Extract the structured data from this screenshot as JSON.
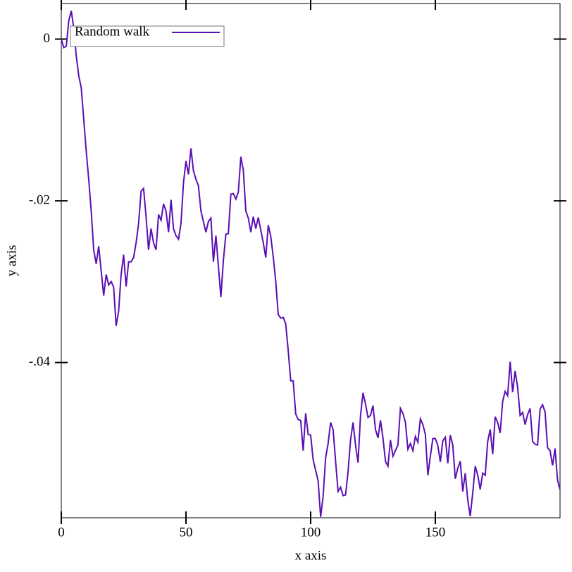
{
  "chart_data": {
    "type": "line",
    "x_label": "x axis",
    "y_label": "y axis",
    "x": [
      0,
      1,
      2,
      3,
      4,
      5,
      6,
      7,
      8,
      9,
      10,
      11,
      12,
      13,
      14,
      15,
      16,
      17,
      18,
      19,
      20,
      21,
      22,
      23,
      24,
      25,
      26,
      27,
      28,
      29,
      30,
      31,
      32,
      33,
      34,
      35,
      36,
      37,
      38,
      39,
      40,
      41,
      42,
      43,
      44,
      45,
      46,
      47,
      48,
      49,
      50,
      51,
      52,
      53,
      54,
      55,
      56,
      57,
      58,
      59,
      60,
      61,
      62,
      63,
      64,
      65,
      66,
      67,
      68,
      69,
      70,
      71,
      72,
      73,
      74,
      75,
      76,
      77,
      78,
      79,
      80,
      81,
      82,
      83,
      84,
      85,
      86,
      87,
      88,
      89,
      90,
      91,
      92,
      93,
      94,
      95,
      96,
      97,
      98,
      99,
      100,
      101,
      102,
      103,
      104,
      105,
      106,
      107,
      108,
      109,
      110,
      111,
      112,
      113,
      114,
      115,
      116,
      117,
      118,
      119,
      120,
      121,
      122,
      123,
      124,
      125,
      126,
      127,
      128,
      129,
      130,
      131,
      132,
      133,
      134,
      135,
      136,
      137,
      138,
      139,
      140,
      141,
      142,
      143,
      144,
      145,
      146,
      147,
      148,
      149,
      150,
      151,
      152,
      153,
      154,
      155,
      156,
      157,
      158,
      159,
      160,
      161,
      162,
      163,
      164,
      165,
      166,
      167,
      168,
      169,
      170,
      171,
      172,
      173,
      174,
      175,
      176,
      177,
      178,
      179,
      180,
      181,
      182,
      183,
      184,
      185,
      186,
      187,
      188,
      189,
      190,
      191,
      192,
      193,
      194,
      195,
      196,
      197,
      198,
      199,
      200
    ],
    "series": [
      {
        "name": "Random walk",
        "color": "#5b0fb5",
        "values": [
          0,
          -0.00105,
          -0.00087,
          0.00227,
          0.00349,
          0.00139,
          -0.00209,
          -0.00453,
          -0.00601,
          -0.00993,
          -0.01386,
          -0.01734,
          -0.02126,
          -0.02606,
          -0.0278,
          -0.02562,
          -0.02867,
          -0.03172,
          -0.02911,
          -0.03041,
          -0.02998,
          -0.03068,
          -0.03547,
          -0.03364,
          -0.02911,
          -0.02667,
          -0.03059,
          -0.02754,
          -0.02754,
          -0.02702,
          -0.02519,
          -0.02283,
          -0.01882,
          -0.01847,
          -0.02196,
          -0.02606,
          -0.02344,
          -0.02519,
          -0.02606,
          -0.0217,
          -0.0224,
          -0.02039,
          -0.02126,
          -0.02388,
          -0.01987,
          -0.02344,
          -0.02431,
          -0.02475,
          -0.02283,
          -0.01778,
          -0.01508,
          -0.01673,
          -0.01351,
          -0.0163,
          -0.01734,
          -0.01813,
          -0.02126,
          -0.02257,
          -0.02388,
          -0.02257,
          -0.02213,
          -0.02754,
          -0.02431,
          -0.02806,
          -0.0319,
          -0.02736,
          -0.02414,
          -0.02405,
          -0.01917,
          -0.01909,
          -0.01978,
          -0.01891,
          -0.01455,
          -0.01621,
          -0.02126,
          -0.02213,
          -0.02388,
          -0.02196,
          -0.02344,
          -0.02205,
          -0.02362,
          -0.02519,
          -0.02702,
          -0.02301,
          -0.0244,
          -0.02693,
          -0.02998,
          -0.03407,
          -0.03451,
          -0.03442,
          -0.03521,
          -0.03852,
          -0.04227,
          -0.04227,
          -0.04636,
          -0.04706,
          -0.04715,
          -0.0509,
          -0.04628,
          -0.04889,
          -0.04898,
          -0.05203,
          -0.05333,
          -0.05464,
          -0.05909,
          -0.05656,
          -0.05177,
          -0.05002,
          -0.04741,
          -0.04828,
          -0.0522,
          -0.05595,
          -0.05543,
          -0.05647,
          -0.05638,
          -0.05351,
          -0.04959,
          -0.04741,
          -0.0502,
          -0.05238,
          -0.04654,
          -0.04375,
          -0.04514,
          -0.0468,
          -0.04654,
          -0.04532,
          -0.04828,
          -0.04933,
          -0.04715,
          -0.04933,
          -0.0522,
          -0.05281,
          -0.04959,
          -0.05159,
          -0.0509,
          -0.0502,
          -0.04567,
          -0.04628,
          -0.04741,
          -0.05072,
          -0.05002,
          -0.0509,
          -0.04915,
          -0.04985,
          -0.04697,
          -0.04767,
          -0.04889,
          -0.05394,
          -0.05159,
          -0.04941,
          -0.04941,
          -0.05028,
          -0.05229,
          -0.04967,
          -0.04924,
          -0.05246,
          -0.04898,
          -0.0502,
          -0.05438,
          -0.05307,
          -0.0522,
          -0.05595,
          -0.05368,
          -0.05699,
          -0.059,
          -0.05612,
          -0.05281,
          -0.05394,
          -0.05569,
          -0.05368,
          -0.05394,
          -0.04976,
          -0.04828,
          -0.05133,
          -0.04671,
          -0.04741,
          -0.04871,
          -0.04479,
          -0.04357,
          -0.0441,
          -0.03991,
          -0.04366,
          -0.04105,
          -0.04305,
          -0.04654,
          -0.04619,
          -0.04767,
          -0.04645,
          -0.04567,
          -0.04976,
          -0.05011,
          -0.0502,
          -0.04575,
          -0.04523,
          -0.0461,
          -0.05054,
          -0.0509,
          -0.05272,
          -0.05063,
          -0.05455,
          -0.05569
        ]
      }
    ],
    "xlim": [
      0,
      200
    ],
    "ylim": [
      -0.0592,
      0.0044
    ],
    "xticks": [
      0,
      50,
      100,
      150
    ],
    "yticks": [
      0,
      {
        "value": -0.02,
        "label": "-.02"
      },
      {
        "value": -0.04,
        "label": "-.04"
      }
    ],
    "legend": "top-left"
  }
}
